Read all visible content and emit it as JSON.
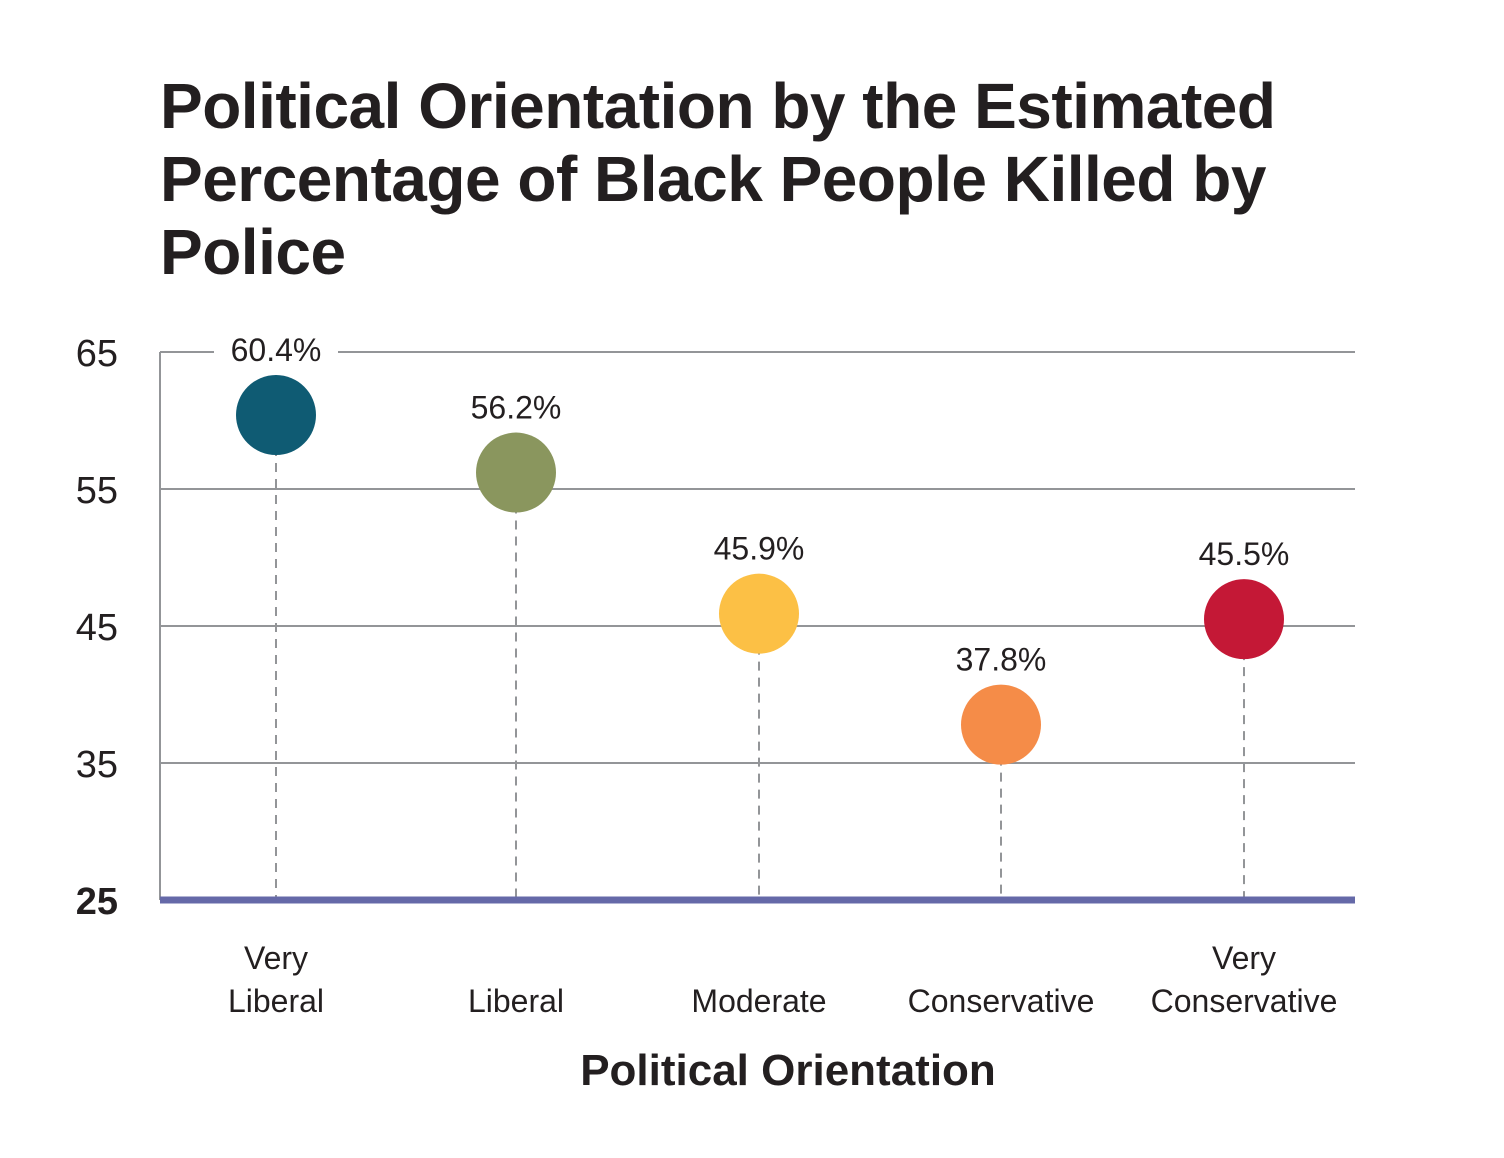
{
  "chart_data": {
    "type": "scatter",
    "title": "Political Orientation by the Estimated Percentage of Black People Killed by Police",
    "xlabel": "Political Orientation",
    "ylabel": "",
    "categories": [
      [
        "Very",
        "Liberal"
      ],
      [
        "Liberal"
      ],
      [
        "Moderate"
      ],
      [
        "Conservative"
      ],
      [
        "Very",
        "Conservative"
      ]
    ],
    "values": [
      60.4,
      56.2,
      45.9,
      37.8,
      45.5
    ],
    "data_labels": [
      "60.4%",
      "56.2%",
      "45.9%",
      "37.8%",
      "45.5%"
    ],
    "colors": [
      "#0f5b73",
      "#8a965e",
      "#fcc045",
      "#f58c48",
      "#c41836"
    ],
    "ylim": [
      25,
      65
    ],
    "yticks": [
      "65",
      "55",
      "45",
      "35",
      "25"
    ],
    "grid": true,
    "baseline_color": "#6569a8",
    "grid_color": "#939598"
  }
}
